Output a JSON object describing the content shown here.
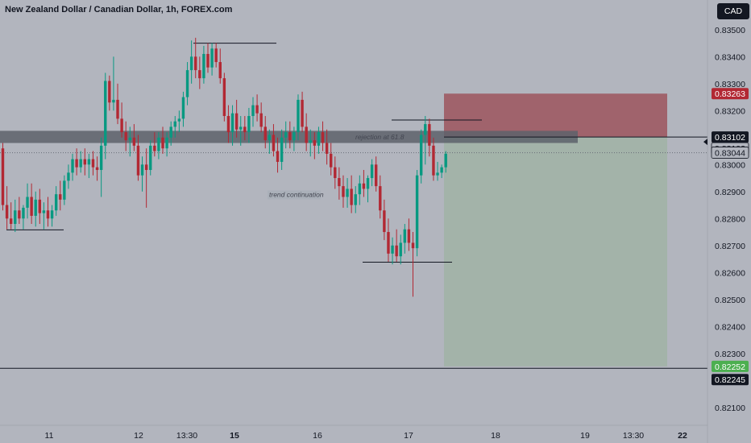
{
  "header": {
    "title": "New Zealand Dollar / Canadian Dollar, 1h, FOREX.com",
    "currency_button": "CAD"
  },
  "colors": {
    "background": "#b2b5be",
    "bull": "#089981",
    "bear": "#b22833",
    "stop_zone": "#a0636c",
    "target_zone": "#a3b3a9",
    "resistance_band": "#5d616b",
    "line": "#131722"
  },
  "chart_data": {
    "type": "candlestick",
    "symbol": "NZDCAD",
    "timeframe": "1h",
    "ylim": [
      0.8205,
      0.8357
    ],
    "y_ticks": [
      "0.83500",
      "0.83400",
      "0.83300",
      "0.83200",
      "0.83100",
      "0.83000",
      "0.82900",
      "0.82800",
      "0.82700",
      "0.82600",
      "0.82500",
      "0.82400",
      "0.82300",
      "0.82200",
      "0.82100"
    ],
    "x_ticks": [
      "11",
      "12",
      "13:30",
      "15",
      "16",
      "17",
      "18",
      "19",
      "13:30",
      "22"
    ],
    "price_tags": [
      {
        "value": "0.83263",
        "role": "stop"
      },
      {
        "value": "0.83102",
        "role": "level"
      },
      {
        "value": "0.83102",
        "role": "entry"
      },
      {
        "value": "0.83044",
        "role": "last"
      },
      {
        "value": "0.82252",
        "role": "target"
      },
      {
        "value": "0.82245",
        "role": "level"
      }
    ],
    "levels": {
      "resistance_band": [
        0.8308,
        0.83125
      ],
      "entry": 0.83102,
      "stop": 0.83263,
      "target": 0.82252,
      "horizontal_line": 0.82245,
      "last_price": 0.83044
    },
    "annotations": [
      {
        "text": "rejection at 61.8"
      },
      {
        "text": "trend continuation"
      }
    ],
    "candles": [
      [
        0.8306,
        0.8308,
        0.8283,
        0.8285
      ],
      [
        0.8285,
        0.8292,
        0.8276,
        0.828
      ],
      [
        0.828,
        0.8286,
        0.8276,
        0.8278
      ],
      [
        0.8278,
        0.8287,
        0.8275,
        0.8283
      ],
      [
        0.8283,
        0.8288,
        0.8278,
        0.828
      ],
      [
        0.828,
        0.8285,
        0.8276,
        0.8284
      ],
      [
        0.8284,
        0.8293,
        0.828,
        0.8288
      ],
      [
        0.8288,
        0.8293,
        0.8278,
        0.8281
      ],
      [
        0.8281,
        0.829,
        0.8277,
        0.8287
      ],
      [
        0.8287,
        0.8291,
        0.8278,
        0.8282
      ],
      [
        0.8282,
        0.8286,
        0.8276,
        0.8283
      ],
      [
        0.8283,
        0.8288,
        0.8277,
        0.828
      ],
      [
        0.828,
        0.8285,
        0.8277,
        0.8283
      ],
      [
        0.8283,
        0.8292,
        0.8281,
        0.8289
      ],
      [
        0.8289,
        0.8294,
        0.8283,
        0.8287
      ],
      [
        0.8287,
        0.8296,
        0.8285,
        0.8294
      ],
      [
        0.8294,
        0.83,
        0.8291,
        0.8297
      ],
      [
        0.8297,
        0.8304,
        0.8294,
        0.8302
      ],
      [
        0.8302,
        0.8306,
        0.8296,
        0.8299
      ],
      [
        0.8299,
        0.8305,
        0.8297,
        0.8302
      ],
      [
        0.8302,
        0.8306,
        0.8296,
        0.83
      ],
      [
        0.83,
        0.8304,
        0.8295,
        0.8302
      ],
      [
        0.8302,
        0.8305,
        0.8296,
        0.8299
      ],
      [
        0.8299,
        0.8303,
        0.8294,
        0.8298
      ],
      [
        0.8298,
        0.831,
        0.8288,
        0.8307
      ],
      [
        0.8307,
        0.8334,
        0.8302,
        0.8331
      ],
      [
        0.8331,
        0.8333,
        0.832,
        0.8323
      ],
      [
        0.8323,
        0.834,
        0.832,
        0.8324
      ],
      [
        0.8324,
        0.833,
        0.8315,
        0.8317
      ],
      [
        0.8317,
        0.8323,
        0.831,
        0.8312
      ],
      [
        0.8312,
        0.8316,
        0.8305,
        0.8309
      ],
      [
        0.8309,
        0.8314,
        0.8303,
        0.831
      ],
      [
        0.831,
        0.8315,
        0.8305,
        0.8307
      ],
      [
        0.8307,
        0.8311,
        0.8294,
        0.8296
      ],
      [
        0.8296,
        0.8303,
        0.829,
        0.83
      ],
      [
        0.83,
        0.8306,
        0.8284,
        0.8298
      ],
      [
        0.8298,
        0.8309,
        0.8296,
        0.8307
      ],
      [
        0.8307,
        0.8312,
        0.8303,
        0.8305
      ],
      [
        0.8305,
        0.8312,
        0.8302,
        0.831
      ],
      [
        0.831,
        0.8314,
        0.8304,
        0.8306
      ],
      [
        0.8306,
        0.8312,
        0.8303,
        0.831
      ],
      [
        0.831,
        0.8316,
        0.8307,
        0.8314
      ],
      [
        0.8314,
        0.8318,
        0.831,
        0.8316
      ],
      [
        0.8316,
        0.832,
        0.8312,
        0.8317
      ],
      [
        0.8317,
        0.8327,
        0.8314,
        0.8325
      ],
      [
        0.8325,
        0.8338,
        0.8322,
        0.8335
      ],
      [
        0.8335,
        0.8346,
        0.833,
        0.834
      ],
      [
        0.834,
        0.8347,
        0.8332,
        0.8335
      ],
      [
        0.8335,
        0.834,
        0.8328,
        0.8332
      ],
      [
        0.8332,
        0.8344,
        0.833,
        0.8341
      ],
      [
        0.8341,
        0.8345,
        0.8334,
        0.8336
      ],
      [
        0.8336,
        0.8345,
        0.8333,
        0.8343
      ],
      [
        0.8343,
        0.8345,
        0.8336,
        0.8338
      ],
      [
        0.8338,
        0.8343,
        0.833,
        0.8332
      ],
      [
        0.8332,
        0.8334,
        0.8316,
        0.8318
      ],
      [
        0.8318,
        0.8322,
        0.8308,
        0.8312
      ],
      [
        0.8312,
        0.8322,
        0.8307,
        0.8319
      ],
      [
        0.8319,
        0.8324,
        0.831,
        0.8313
      ],
      [
        0.8313,
        0.8318,
        0.8307,
        0.8314
      ],
      [
        0.8314,
        0.8318,
        0.8309,
        0.8312
      ],
      [
        0.8312,
        0.8321,
        0.8308,
        0.8318
      ],
      [
        0.8318,
        0.8325,
        0.8314,
        0.8322
      ],
      [
        0.8322,
        0.8326,
        0.8316,
        0.8319
      ],
      [
        0.8319,
        0.8323,
        0.8312,
        0.8314
      ],
      [
        0.8314,
        0.8318,
        0.8306,
        0.8309
      ],
      [
        0.8309,
        0.8313,
        0.8304,
        0.8311
      ],
      [
        0.8311,
        0.8315,
        0.8303,
        0.8305
      ],
      [
        0.8305,
        0.831,
        0.8297,
        0.8301
      ],
      [
        0.8301,
        0.8313,
        0.8298,
        0.831
      ],
      [
        0.831,
        0.8316,
        0.8306,
        0.8312
      ],
      [
        0.8312,
        0.8316,
        0.8306,
        0.8309
      ],
      [
        0.8309,
        0.8314,
        0.8305,
        0.8312
      ],
      [
        0.8312,
        0.8326,
        0.8309,
        0.8324
      ],
      [
        0.8324,
        0.8327,
        0.8312,
        0.8314
      ],
      [
        0.8314,
        0.8319,
        0.8305,
        0.8308
      ],
      [
        0.8308,
        0.8313,
        0.8303,
        0.8309
      ],
      [
        0.8309,
        0.8312,
        0.8302,
        0.8307
      ],
      [
        0.8307,
        0.8314,
        0.8304,
        0.8312
      ],
      [
        0.8312,
        0.8316,
        0.8305,
        0.8308
      ],
      [
        0.8308,
        0.8313,
        0.83,
        0.8304
      ],
      [
        0.8304,
        0.8308,
        0.8296,
        0.8299
      ],
      [
        0.8299,
        0.8303,
        0.8291,
        0.8295
      ],
      [
        0.8295,
        0.8299,
        0.8287,
        0.8292
      ],
      [
        0.8292,
        0.8296,
        0.8284,
        0.8288
      ],
      [
        0.8288,
        0.8295,
        0.8284,
        0.8291
      ],
      [
        0.8291,
        0.8296,
        0.8282,
        0.8285
      ],
      [
        0.8285,
        0.8292,
        0.8282,
        0.8289
      ],
      [
        0.8289,
        0.8296,
        0.8285,
        0.8293
      ],
      [
        0.8293,
        0.8298,
        0.8288,
        0.8291
      ],
      [
        0.8291,
        0.8296,
        0.8286,
        0.8295
      ],
      [
        0.8295,
        0.8302,
        0.8292,
        0.83
      ],
      [
        0.83,
        0.8303,
        0.829,
        0.8292
      ],
      [
        0.8292,
        0.8296,
        0.828,
        0.8283
      ],
      [
        0.8283,
        0.8287,
        0.8272,
        0.8275
      ],
      [
        0.8275,
        0.828,
        0.8264,
        0.8267
      ],
      [
        0.8267,
        0.8273,
        0.8263,
        0.827
      ],
      [
        0.827,
        0.8276,
        0.8264,
        0.8266
      ],
      [
        0.8266,
        0.8274,
        0.8263,
        0.8271
      ],
      [
        0.8271,
        0.8278,
        0.8267,
        0.8276
      ],
      [
        0.8276,
        0.828,
        0.8268,
        0.8271
      ],
      [
        0.8271,
        0.8275,
        0.8251,
        0.8269
      ],
      [
        0.8269,
        0.8298,
        0.8266,
        0.8296
      ],
      [
        0.8296,
        0.8313,
        0.8293,
        0.8311
      ],
      [
        0.8311,
        0.8318,
        0.83,
        0.8315
      ],
      [
        0.8315,
        0.8317,
        0.8303,
        0.8307
      ],
      [
        0.8307,
        0.831,
        0.8294,
        0.8296
      ],
      [
        0.8296,
        0.8301,
        0.8294,
        0.8297
      ],
      [
        0.8297,
        0.83,
        0.8295,
        0.8299
      ],
      [
        0.8299,
        0.8305,
        0.8297,
        0.8304
      ]
    ]
  }
}
